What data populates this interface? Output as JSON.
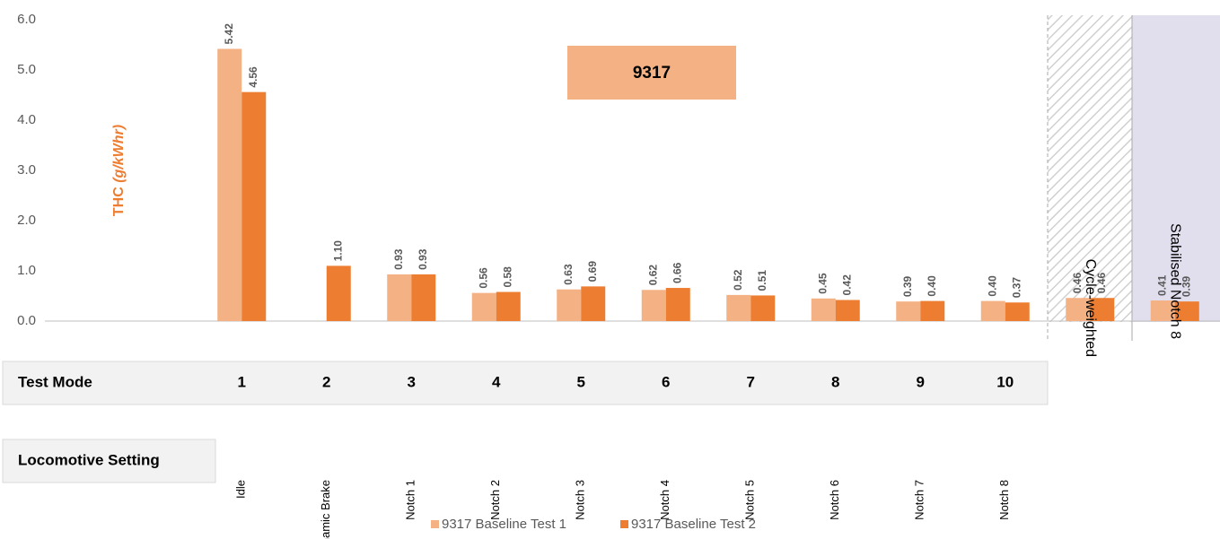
{
  "chart_data": {
    "type": "bar",
    "y_label_main": "THC",
    "y_label_unit": "(g/kWhr)",
    "annotation": "9317",
    "categories": [
      "Idle",
      "Dynamic Brake",
      "Notch 1",
      "Notch 2",
      "Notch 3",
      "Notch 4",
      "Notch 5",
      "Notch 6",
      "Notch 7",
      "Notch 8",
      "Cycle-weighted",
      "Stabilised Notch 8"
    ],
    "test_mode_label": "Test Mode",
    "test_modes": [
      "1",
      "2",
      "3",
      "4",
      "5",
      "6",
      "7",
      "8",
      "9",
      "10"
    ],
    "setting_label": "Locomotive Setting",
    "series": [
      {
        "name": "9317 Baseline Test 1",
        "color": "#f4b183",
        "values": [
          5.42,
          null,
          0.93,
          0.56,
          0.63,
          0.62,
          0.52,
          0.45,
          0.39,
          0.4,
          0.46,
          0.41
        ],
        "value_labels": [
          "5.42",
          null,
          "0.93",
          "0.56",
          "0.63",
          "0.62",
          "0.52",
          "0.45",
          "0.39",
          "0.40",
          "0.46",
          "0.41"
        ]
      },
      {
        "name": "9317 Baseline Test 2",
        "color": "#ed7d31",
        "values": [
          4.56,
          1.1,
          0.93,
          0.58,
          0.69,
          0.66,
          0.51,
          0.42,
          0.4,
          0.37,
          0.46,
          0.39
        ],
        "value_labels": [
          "4.56",
          "1.10",
          "0.93",
          "0.58",
          "0.69",
          "0.66",
          "0.51",
          "0.42",
          "0.40",
          "0.37",
          "0.46",
          "0.39"
        ]
      }
    ],
    "ylim": [
      0,
      6
    ],
    "yticks": [
      {
        "value": 0,
        "label": "0.0"
      },
      {
        "value": 1,
        "label": "1.0"
      },
      {
        "value": 2,
        "label": "2.0"
      },
      {
        "value": 3,
        "label": "3.0"
      },
      {
        "value": 4,
        "label": "4.0"
      },
      {
        "value": 5,
        "label": "5.0"
      },
      {
        "value": 6,
        "label": "6.0"
      }
    ],
    "grid": false,
    "legend": "bottom"
  }
}
